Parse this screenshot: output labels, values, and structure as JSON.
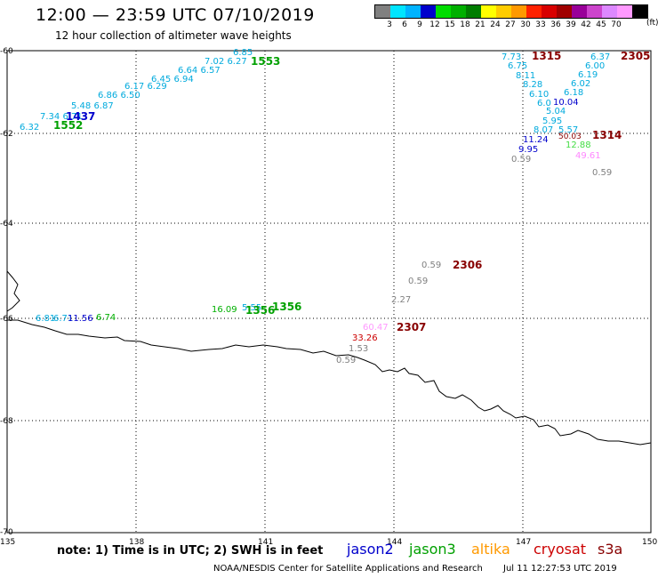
{
  "header": {
    "title": "12:00 — 23:59 UTC 07/10/2019",
    "subtitle": "12 hour collection of altimeter wave heights"
  },
  "scale": {
    "unit": "(ft)",
    "colors": [
      "#808080",
      "#00e5ff",
      "#00b3ff",
      "#0000cc",
      "#00dd00",
      "#00b000",
      "#007d00",
      "#ffff00",
      "#ffcc00",
      "#ff9900",
      "#ff2200",
      "#d80000",
      "#a00000",
      "#990099",
      "#cc44cc",
      "#dd88ff",
      "#ff99ff",
      "#000000"
    ],
    "labels": [
      "3",
      "6",
      "9",
      "12",
      "15",
      "18",
      "21",
      "24",
      "27",
      "30",
      "33",
      "36",
      "39",
      "42",
      "45",
      "70"
    ]
  },
  "axes": {
    "y_labels": [
      "-60",
      "-62",
      "-64",
      "-66",
      "-68",
      "-70"
    ],
    "x_labels": [
      "135",
      "138",
      "141",
      "144",
      "147",
      "150"
    ]
  },
  "footer": {
    "note": "note: 1) Time is in UTC; 2) SWH is in feet",
    "legend": [
      {
        "name": "jason2",
        "color": "#0000cc"
      },
      {
        "name": "jason3",
        "color": "#00a000"
      },
      {
        "name": "altika",
        "color": "#ff9900"
      },
      {
        "name": "cryosat",
        "color": "#cc0000"
      },
      {
        "name": "s3a",
        "color": "#880000"
      }
    ],
    "credit": "NOAA/NESDIS Center for Satellite Applications and Research",
    "timestamp": "Jul 11 12:27:53 UTC 2019"
  },
  "map_labels": {
    "track_times": [
      "1315",
      "2305",
      "1314",
      "1553",
      "1437",
      "1552",
      "2306",
      "2307",
      "1356",
      "1356"
    ],
    "swh_values": [
      {
        "t": "7.73",
        "c": "#00aadd"
      },
      {
        "t": "6.75",
        "c": "#00aadd"
      },
      {
        "t": "8.11",
        "c": "#00aadd"
      },
      {
        "t": "8.28",
        "c": "#00aadd"
      },
      {
        "t": "6.10",
        "c": "#00aadd"
      },
      {
        "t": "6.0",
        "c": "#00aadd"
      },
      {
        "t": "5.04",
        "c": "#00aadd"
      },
      {
        "t": "5.95",
        "c": "#00aadd"
      },
      {
        "t": "8.07",
        "c": "#00aadd"
      },
      {
        "t": "11.24",
        "c": "#0000cc"
      },
      {
        "t": "9.95",
        "c": "#0000cc"
      },
      {
        "t": "0.59",
        "c": "#808080"
      },
      {
        "t": "6.37",
        "c": "#00aadd"
      },
      {
        "t": "6.00",
        "c": "#00aadd"
      },
      {
        "t": "6.19",
        "c": "#00aadd"
      },
      {
        "t": "6.02",
        "c": "#00aadd"
      },
      {
        "t": "6.18",
        "c": "#00aadd"
      },
      {
        "t": "10.04",
        "c": "#0000cc"
      },
      {
        "t": "5.57",
        "c": "#00aadd"
      },
      {
        "t": "50.03",
        "c": "#880000"
      },
      {
        "t": "12.88",
        "c": "#55ee55"
      },
      {
        "t": "49.61",
        "c": "#ff88ff"
      },
      {
        "t": "0.59",
        "c": "#808080"
      },
      {
        "t": "0.59",
        "c": "#808080"
      },
      {
        "t": "0.59",
        "c": "#808080"
      },
      {
        "t": "2.27",
        "c": "#808080"
      },
      {
        "t": "60.47",
        "c": "#ff99ff"
      },
      {
        "t": "33.26",
        "c": "#cc0000"
      },
      {
        "t": "1.53",
        "c": "#808080"
      },
      {
        "t": "0.59",
        "c": "#808080"
      },
      {
        "t": "16.09",
        "c": "#00b000"
      },
      {
        "t": "5.55",
        "c": "#00aadd"
      },
      {
        "t": "6.32",
        "c": "#00aadd"
      },
      {
        "t": "6.85",
        "c": "#00aadd"
      },
      {
        "t": "6.81",
        "c": "#00aadd"
      },
      {
        "t": "6.71",
        "c": "#00aadd"
      },
      {
        "t": "11.56",
        "c": "#0000cc"
      },
      {
        "t": "6.74",
        "c": "#00b000"
      }
    ]
  }
}
